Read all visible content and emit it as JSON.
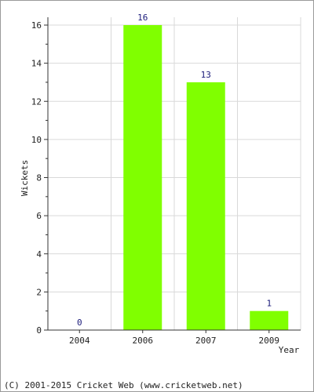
{
  "chart_data": {
    "type": "bar",
    "categories": [
      "2004",
      "2006",
      "2007",
      "2009"
    ],
    "values": [
      0,
      16,
      13,
      1
    ],
    "data_labels": [
      "0",
      "16",
      "13",
      "1"
    ],
    "title": "",
    "xlabel": "Year",
    "ylabel": "Wickets",
    "ylim": [
      0,
      16
    ],
    "yticks": [
      0,
      2,
      4,
      6,
      8,
      10,
      12,
      14,
      16
    ],
    "ytick_labels": [
      "0",
      "2",
      "4",
      "6",
      "8",
      "10",
      "12",
      "14",
      "16"
    ],
    "grid": true,
    "legend": "none",
    "bar_color": "#80ff00",
    "grid_color": "#d9d9d9"
  },
  "footer": {
    "copyright": "(C) 2001-2015 Cricket Web (www.cricketweb.net)"
  }
}
